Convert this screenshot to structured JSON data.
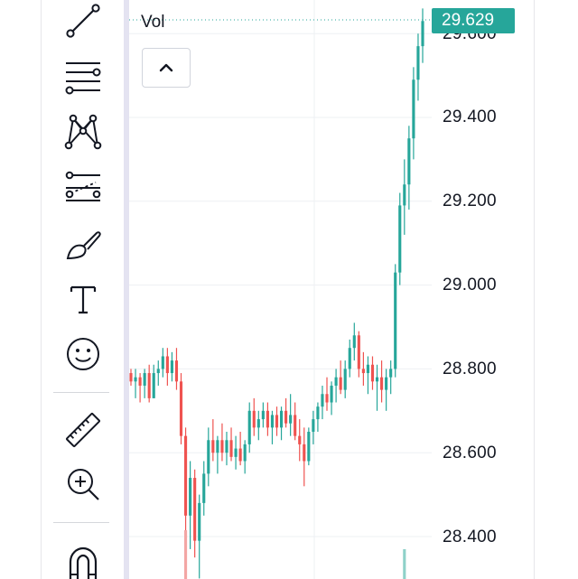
{
  "legend": {
    "volume_label": "Vol"
  },
  "price_axis": {
    "current_price": "29.629",
    "current_price_color": "#26a69a",
    "labels": [
      "29.600",
      "29.400",
      "29.200",
      "29.000",
      "28.800",
      "28.600",
      "28.400"
    ]
  },
  "toolbar": {
    "tools": [
      {
        "name": "trend-line-icon"
      },
      {
        "name": "fib-retracement-icon"
      },
      {
        "name": "xabcd-pattern-icon"
      },
      {
        "name": "forecast-icon"
      },
      {
        "name": "brush-icon"
      },
      {
        "name": "text-icon"
      },
      {
        "name": "emoji-icon"
      },
      {
        "name": "ruler-icon"
      },
      {
        "name": "zoom-in-icon"
      },
      {
        "name": "magnet-icon"
      }
    ]
  },
  "colors": {
    "up": "#26a69a",
    "down": "#ef5350",
    "grid": "#eef0f3"
  },
  "chart_data": {
    "type": "candlestick",
    "ylim": [
      28.35,
      29.68
    ],
    "candles": [
      [
        28.79,
        28.8,
        28.76,
        28.77
      ],
      [
        28.77,
        28.8,
        28.73,
        28.78
      ],
      [
        28.78,
        28.79,
        28.72,
        28.76
      ],
      [
        28.76,
        28.8,
        28.73,
        28.79
      ],
      [
        28.79,
        28.81,
        28.72,
        28.73
      ],
      [
        28.73,
        28.81,
        28.73,
        28.79
      ],
      [
        28.79,
        28.82,
        28.76,
        28.8
      ],
      [
        28.8,
        28.85,
        28.78,
        28.83
      ],
      [
        28.83,
        28.85,
        28.76,
        28.79
      ],
      [
        28.79,
        28.84,
        28.77,
        28.82
      ],
      [
        28.82,
        28.85,
        28.75,
        28.77
      ],
      [
        28.77,
        28.79,
        28.62,
        28.64
      ],
      [
        28.64,
        28.66,
        28.4,
        28.45
      ],
      [
        28.45,
        28.58,
        28.37,
        28.54
      ],
      [
        28.54,
        28.56,
        28.35,
        28.39
      ],
      [
        28.39,
        28.5,
        28.3,
        28.48
      ],
      [
        28.48,
        28.58,
        28.45,
        28.55
      ],
      [
        28.55,
        28.66,
        28.52,
        28.63
      ],
      [
        28.63,
        28.68,
        28.58,
        28.6
      ],
      [
        28.6,
        28.64,
        28.55,
        28.63
      ],
      [
        28.63,
        28.67,
        28.58,
        28.6
      ],
      [
        28.6,
        28.65,
        28.57,
        28.63
      ],
      [
        28.63,
        28.66,
        28.58,
        28.59
      ],
      [
        28.59,
        28.64,
        28.56,
        28.61
      ],
      [
        28.61,
        28.65,
        28.57,
        28.58
      ],
      [
        28.58,
        28.63,
        28.55,
        28.62
      ],
      [
        28.62,
        28.72,
        28.6,
        28.7
      ],
      [
        28.7,
        28.73,
        28.64,
        28.66
      ],
      [
        28.66,
        28.7,
        28.63,
        28.68
      ],
      [
        28.68,
        28.72,
        28.66,
        28.7
      ],
      [
        28.7,
        28.72,
        28.64,
        28.66
      ],
      [
        28.66,
        28.7,
        28.62,
        28.69
      ],
      [
        28.69,
        28.71,
        28.64,
        28.66
      ],
      [
        28.66,
        28.71,
        28.63,
        28.7
      ],
      [
        28.7,
        28.73,
        28.66,
        28.67
      ],
      [
        28.67,
        28.74,
        28.64,
        28.69
      ],
      [
        28.69,
        28.72,
        28.63,
        28.64
      ],
      [
        28.64,
        28.68,
        28.58,
        28.62
      ],
      [
        28.62,
        28.66,
        28.52,
        28.58
      ],
      [
        28.58,
        28.66,
        28.57,
        28.65
      ],
      [
        28.65,
        28.7,
        28.62,
        28.68
      ],
      [
        28.68,
        28.72,
        28.65,
        28.71
      ],
      [
        28.71,
        28.76,
        28.68,
        28.74
      ],
      [
        28.74,
        28.78,
        28.7,
        28.72
      ],
      [
        28.72,
        28.77,
        28.69,
        28.76
      ],
      [
        28.76,
        28.8,
        28.72,
        28.78
      ],
      [
        28.78,
        28.82,
        28.74,
        28.75
      ],
      [
        28.75,
        28.82,
        28.73,
        28.8
      ],
      [
        28.8,
        28.87,
        28.78,
        28.85
      ],
      [
        28.85,
        28.91,
        28.82,
        28.88
      ],
      [
        28.88,
        28.89,
        28.78,
        28.8
      ],
      [
        28.8,
        28.84,
        28.76,
        28.79
      ],
      [
        28.79,
        28.83,
        28.74,
        28.81
      ],
      [
        28.81,
        28.83,
        28.75,
        28.77
      ],
      [
        28.77,
        28.81,
        28.7,
        28.78
      ],
      [
        28.78,
        28.82,
        28.72,
        28.75
      ],
      [
        28.75,
        28.8,
        28.7,
        28.78
      ],
      [
        28.78,
        28.82,
        28.74,
        28.8
      ],
      [
        28.8,
        29.05,
        28.78,
        29.03
      ],
      [
        29.03,
        29.22,
        29.0,
        29.19
      ],
      [
        29.19,
        29.3,
        29.12,
        29.24
      ],
      [
        29.24,
        29.38,
        29.18,
        29.35
      ],
      [
        29.35,
        29.52,
        29.3,
        29.49
      ],
      [
        29.49,
        29.6,
        29.44,
        29.57
      ],
      [
        29.57,
        29.66,
        29.53,
        29.63
      ]
    ],
    "volume": [
      {
        "index": 12,
        "value": 0.9,
        "dir": "down"
      },
      {
        "index": 60,
        "value": 0.55,
        "dir": "up"
      }
    ]
  }
}
